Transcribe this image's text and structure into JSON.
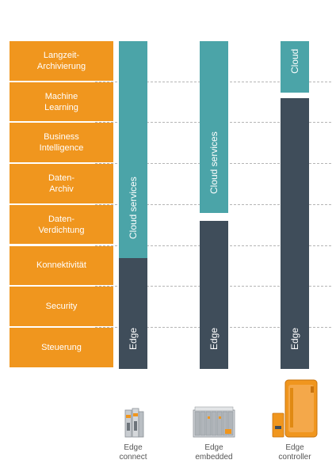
{
  "layers": [
    "Langzeit-\nArchivierung",
    "Machine\nLearning",
    "Business\nIntelligence",
    "Daten-\nArchiv",
    "Daten-\nVerdichtung",
    "Konnektivität",
    "Security",
    "Steuerung"
  ],
  "columns": [
    {
      "product": "Edge\nconnect",
      "cloud_label": "Cloud services",
      "edge_label": "Edge",
      "cloud_layers": 5.3,
      "edge_layers": 2.7
    },
    {
      "product": "Edge\nembedded",
      "cloud_label": "Cloud services",
      "edge_label": "Edge",
      "cloud_layers": 4.2,
      "edge_layers": 3.6
    },
    {
      "product": "Edge\ncontroller",
      "cloud_label": "Cloud",
      "edge_label": "Edge",
      "cloud_layers": 1.25,
      "edge_layers": 6.6
    }
  ],
  "colors": {
    "layer": "#F0961E",
    "cloud": "#4BA4A8",
    "edge": "#3F4D5A",
    "device_orange": "#F0961E",
    "device_grey": "#9aa0a6"
  },
  "icons": [
    "edge-connect-device-icon",
    "edge-embedded-device-icon",
    "edge-controller-device-icon"
  ]
}
